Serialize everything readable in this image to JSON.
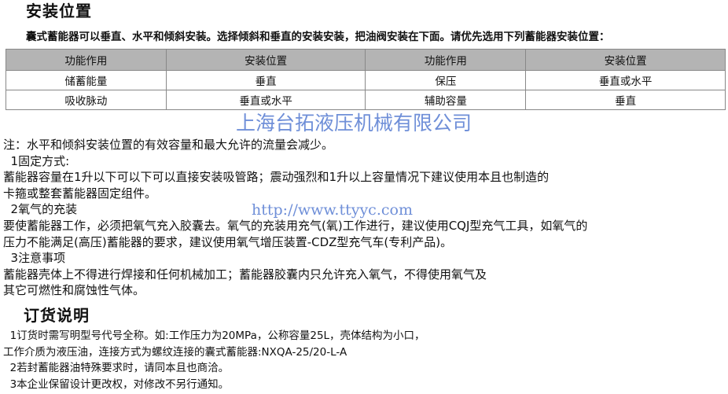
{
  "section1": {
    "title": "安装位置",
    "intro": "囊式蓄能器可以垂直、水平和倾斜安装。选择倾斜和垂直的安装安装，把油阀安装在下面。请优先选用下列蓄能器安装位置：",
    "table": {
      "headers": [
        "功能作用",
        "安装位置",
        "功能作用",
        "安装位置"
      ],
      "rows": [
        [
          "储蓄能量",
          "垂直",
          "保压",
          "垂直或水平"
        ],
        [
          "吸收脉动",
          "垂直或水平",
          "辅助容量",
          "垂直"
        ]
      ]
    },
    "lines": [
      "注：水平和倾斜安装位置的有效容量和最大允许的流量会减少。",
      "  1固定方式:",
      "蓄能器容量在1升以下可以下可以直接安装吸管路；震动强烈和1升以上容量情况下建议使用本且也制造的",
      "卡箍或整套蓄能器固定组件。",
      "  2氧气的充装",
      "要使蓄能器工作，必须把氧气充入胶囊去。氧气的充装用充气(氧)工作进行，建议使用CQJ型充气工具，如氧气的",
      "压力不能满足(高压)蓄能器的要求，建议使用氧气增压装置-CDZ型充气车(专利产品)。",
      "  3注意事项",
      "蓄能器壳体上不得进行焊接和任何机械加工；蓄能器胶囊内只允许充入氧气，不得使用氧气及",
      "其它可燃性和腐蚀性气体。"
    ]
  },
  "section2": {
    "title": "订货说明",
    "lines": [
      "  1订货时需写明型号代号全称。如:工作压力为20MPa，公称容量25L，壳体结构为小口，",
      "工作介质为液压油，连接方式为螺纹连接的囊式蓄能器:NXQA-25/20-L-A",
      "  2若封蓄能器油特殊要求时，请同本且也商洽。",
      "  3本企业保留设计更改权，对修改不另行通知。"
    ]
  },
  "watermark": {
    "company": "上海台拓液压机械有限公司",
    "url": "http://www.ttyyc.com",
    "color": "#6f8fd8"
  }
}
